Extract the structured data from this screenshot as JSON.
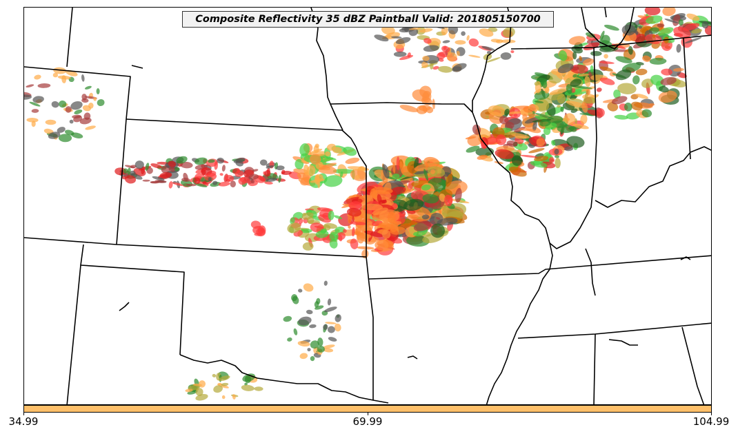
{
  "map": {
    "title": "Composite Reflectivity 35 dBZ Paintball Valid: 201805150700",
    "colorbar": {
      "color": "#ffc06a",
      "ticks": [
        "34.99",
        "69.99",
        "104.99"
      ]
    },
    "member_colors": [
      "#ff3b3b",
      "#e0191b",
      "#ff7f2a",
      "#ffab47",
      "#ff8c3a",
      "#b5a93a",
      "#45d145",
      "#2e8b2e",
      "#1f5c1f",
      "#555555",
      "#a63c3c",
      "#cc6600"
    ]
  }
}
